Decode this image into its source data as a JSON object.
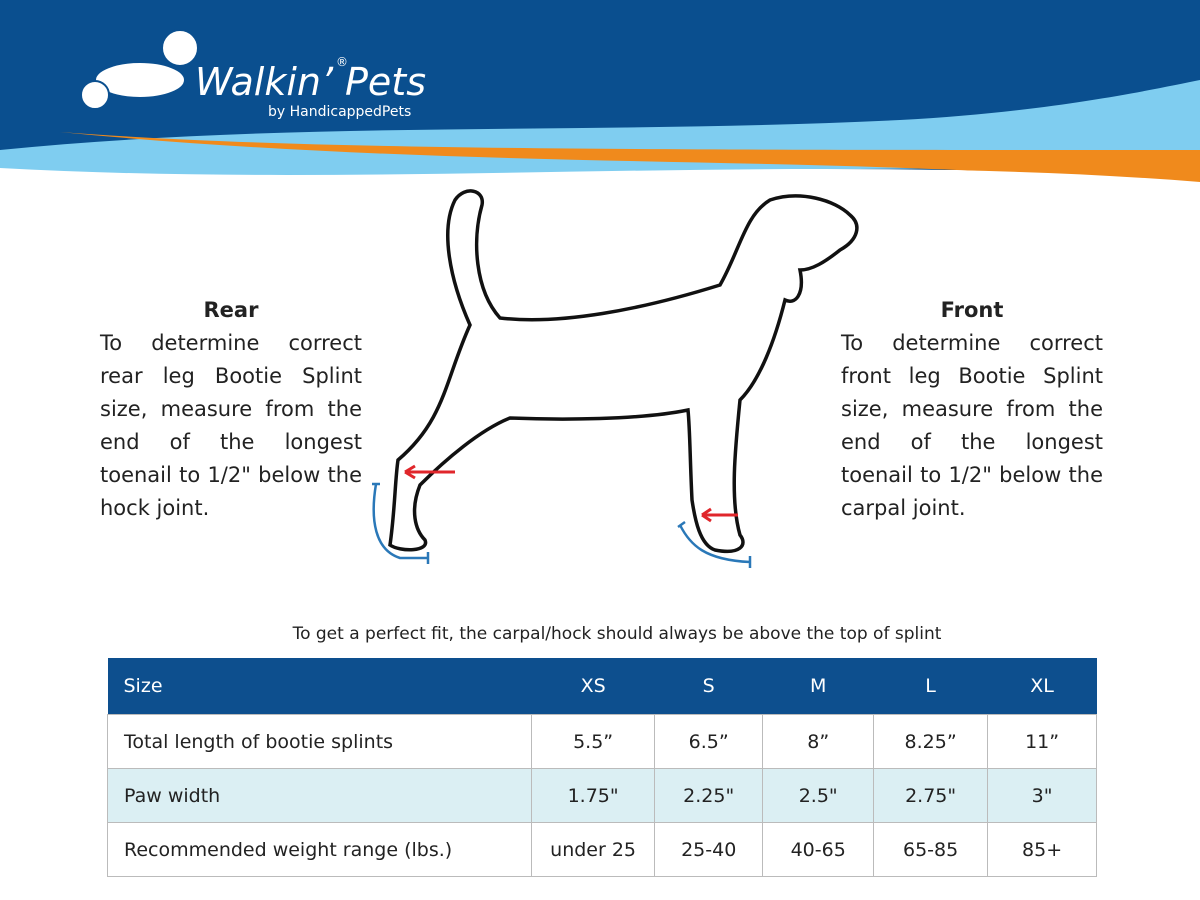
{
  "logo": {
    "word1": "Walkin’",
    "mark": "®",
    "word2": "Pets",
    "tagline": "by HandicappedPets"
  },
  "rear": {
    "title": "Rear",
    "text": "To determine correct rear leg Bootie Splint size, measure from the end of the longest toenail to 1/2\" below the hock joint."
  },
  "front": {
    "title": "Front",
    "text": "To determine correct front leg Bootie Splint size, measure from the end of the longest toenail to 1/2\" below the carpal joint."
  },
  "note": "To get a perfect fit, the carpal/hock should always be above the top of splint",
  "table": {
    "header": [
      "Size",
      "XS",
      "S",
      "M",
      "L",
      "XL"
    ],
    "rows": [
      [
        "Total length of bootie splints",
        "5.5”",
        "6.5”",
        "8”",
        "8.25”",
        "11”"
      ],
      [
        "Paw width",
        "1.75\"",
        "2.25\"",
        "2.5\"",
        "2.75\"",
        "3\""
      ],
      [
        "Recommended weight range (lbs.)",
        "under 25",
        "25-40",
        "40-65",
        "65-85",
        "85+"
      ]
    ]
  }
}
